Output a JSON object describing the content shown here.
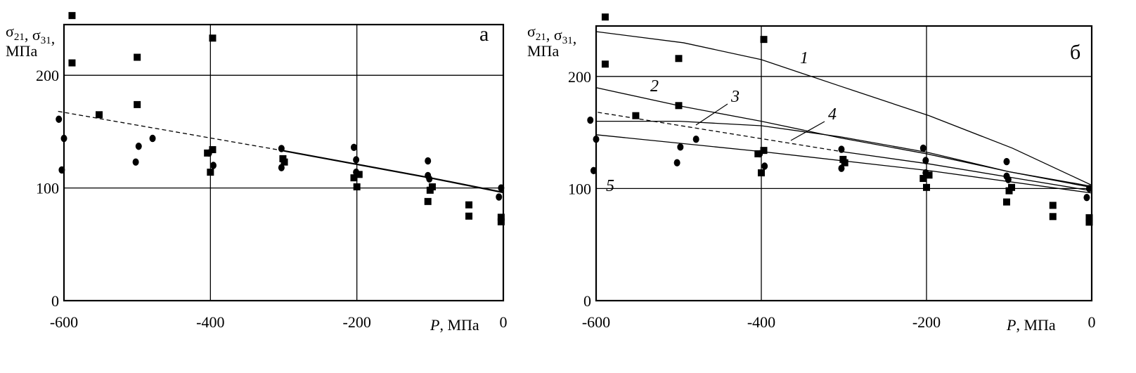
{
  "chart_data": [
    {
      "type": "scatter",
      "panel_label": "а",
      "xlabel_var": "P",
      "xlabel_unit": ", МПа",
      "ylabel_line1": "σ21, σ31,",
      "ylabel_line2": "МПа",
      "xlim": [
        -600,
        0
      ],
      "ylim": [
        0,
        245
      ],
      "xticks": [
        "-600",
        "-400",
        "-200",
        "0"
      ],
      "xtick_values": [
        -600,
        -400,
        -200,
        0
      ],
      "yticks": [
        "0",
        "100",
        "200"
      ],
      "ytick_values": [
        0,
        100,
        200
      ],
      "grid": true,
      "squares": [
        [
          -589,
          253
        ],
        [
          -589,
          211
        ],
        [
          -500,
          216
        ],
        [
          -397,
          233
        ],
        [
          -500,
          174
        ],
        [
          -552,
          165
        ],
        [
          -404,
          131
        ],
        [
          -397,
          134
        ],
        [
          -400,
          114
        ],
        [
          -301,
          126
        ],
        [
          -299,
          123
        ],
        [
          -204,
          109
        ],
        [
          -197,
          112
        ],
        [
          -200,
          101
        ],
        [
          -103,
          88
        ],
        [
          -100,
          98
        ],
        [
          -97,
          101
        ],
        [
          -47,
          85
        ],
        [
          -47,
          75
        ],
        [
          -3,
          74
        ],
        [
          -3,
          70
        ]
      ],
      "circles": [
        [
          -607,
          161
        ],
        [
          -600,
          144
        ],
        [
          -603,
          116
        ],
        [
          -502,
          123
        ],
        [
          -498,
          137
        ],
        [
          -479,
          144
        ],
        [
          -402,
          131
        ],
        [
          -396,
          120
        ],
        [
          -303,
          135
        ],
        [
          -303,
          118
        ],
        [
          -204,
          136
        ],
        [
          -201,
          125
        ],
        [
          -201,
          114
        ],
        [
          -103,
          124
        ],
        [
          -103,
          111
        ],
        [
          -101,
          108
        ],
        [
          -3,
          100
        ],
        [
          -6,
          92
        ]
      ],
      "series": [
        {
          "name": "dashed-fit",
          "style": "dashed",
          "x": [
            -608,
            -300
          ],
          "y": [
            168,
            133
          ]
        },
        {
          "name": "solid-fit",
          "style": "solid",
          "x": [
            -300,
            -200,
            -100,
            0
          ],
          "y": [
            133,
            121,
            109,
            96
          ]
        }
      ]
    },
    {
      "type": "line",
      "panel_label": "б",
      "xlabel_var": "P",
      "xlabel_unit": ", МПа",
      "ylabel_line1": "σ21, σ31,",
      "ylabel_line2": "МПа",
      "xlim": [
        -600,
        0
      ],
      "ylim": [
        0,
        245
      ],
      "xticks": [
        "-600",
        "-400",
        "-200",
        "0"
      ],
      "xtick_values": [
        -600,
        -400,
        -200,
        0
      ],
      "yticks": [
        "0",
        "100",
        "200"
      ],
      "ytick_values": [
        0,
        100,
        200
      ],
      "grid": true,
      "squares": [
        [
          -589,
          253
        ],
        [
          -589,
          211
        ],
        [
          -500,
          216
        ],
        [
          -397,
          233
        ],
        [
          -500,
          174
        ],
        [
          -552,
          165
        ],
        [
          -404,
          131
        ],
        [
          -397,
          134
        ],
        [
          -400,
          114
        ],
        [
          -301,
          126
        ],
        [
          -299,
          123
        ],
        [
          -204,
          109
        ],
        [
          -197,
          112
        ],
        [
          -200,
          101
        ],
        [
          -103,
          88
        ],
        [
          -100,
          98
        ],
        [
          -97,
          101
        ],
        [
          -47,
          85
        ],
        [
          -47,
          75
        ],
        [
          -3,
          74
        ],
        [
          -3,
          70
        ]
      ],
      "circles": [
        [
          -607,
          161
        ],
        [
          -600,
          144
        ],
        [
          -603,
          116
        ],
        [
          -502,
          123
        ],
        [
          -498,
          137
        ],
        [
          -479,
          144
        ],
        [
          -402,
          131
        ],
        [
          -396,
          120
        ],
        [
          -303,
          135
        ],
        [
          -303,
          118
        ],
        [
          -204,
          136
        ],
        [
          -201,
          125
        ],
        [
          -201,
          114
        ],
        [
          -103,
          124
        ],
        [
          -103,
          111
        ],
        [
          -101,
          108
        ],
        [
          -3,
          100
        ],
        [
          -6,
          92
        ]
      ],
      "series": [
        {
          "name": "1",
          "style": "solid",
          "x": [
            -600,
            -494,
            -400,
            -303,
            -197,
            -96,
            0
          ],
          "y": [
            240,
            230,
            215,
            191,
            165,
            136,
            103
          ]
        },
        {
          "name": "2",
          "style": "solid",
          "x": [
            -600,
            -494,
            -400,
            -303,
            -200,
            -100,
            0
          ],
          "y": [
            190,
            173,
            160,
            145,
            131,
            115,
            102
          ]
        },
        {
          "name": "3",
          "style": "solid",
          "x": [
            -600,
            -499,
            -400,
            -303,
            -197,
            -100,
            0
          ],
          "y": [
            160,
            160,
            156,
            146,
            132,
            115,
            101
          ]
        },
        {
          "name": "4",
          "style": "dashed",
          "x": [
            -598,
            -303
          ],
          "y": [
            168,
            133
          ]
        },
        {
          "name": "4-solid",
          "style": "solid",
          "x": [
            -303,
            -197,
            0
          ],
          "y": [
            133,
            122,
            98
          ]
        },
        {
          "name": "5",
          "style": "solid",
          "x": [
            -600,
            -400,
            -197,
            0
          ],
          "y": [
            148,
            133,
            116,
            96
          ]
        }
      ],
      "curve_labels": [
        "1",
        "2",
        "3",
        "4",
        "5"
      ]
    }
  ]
}
